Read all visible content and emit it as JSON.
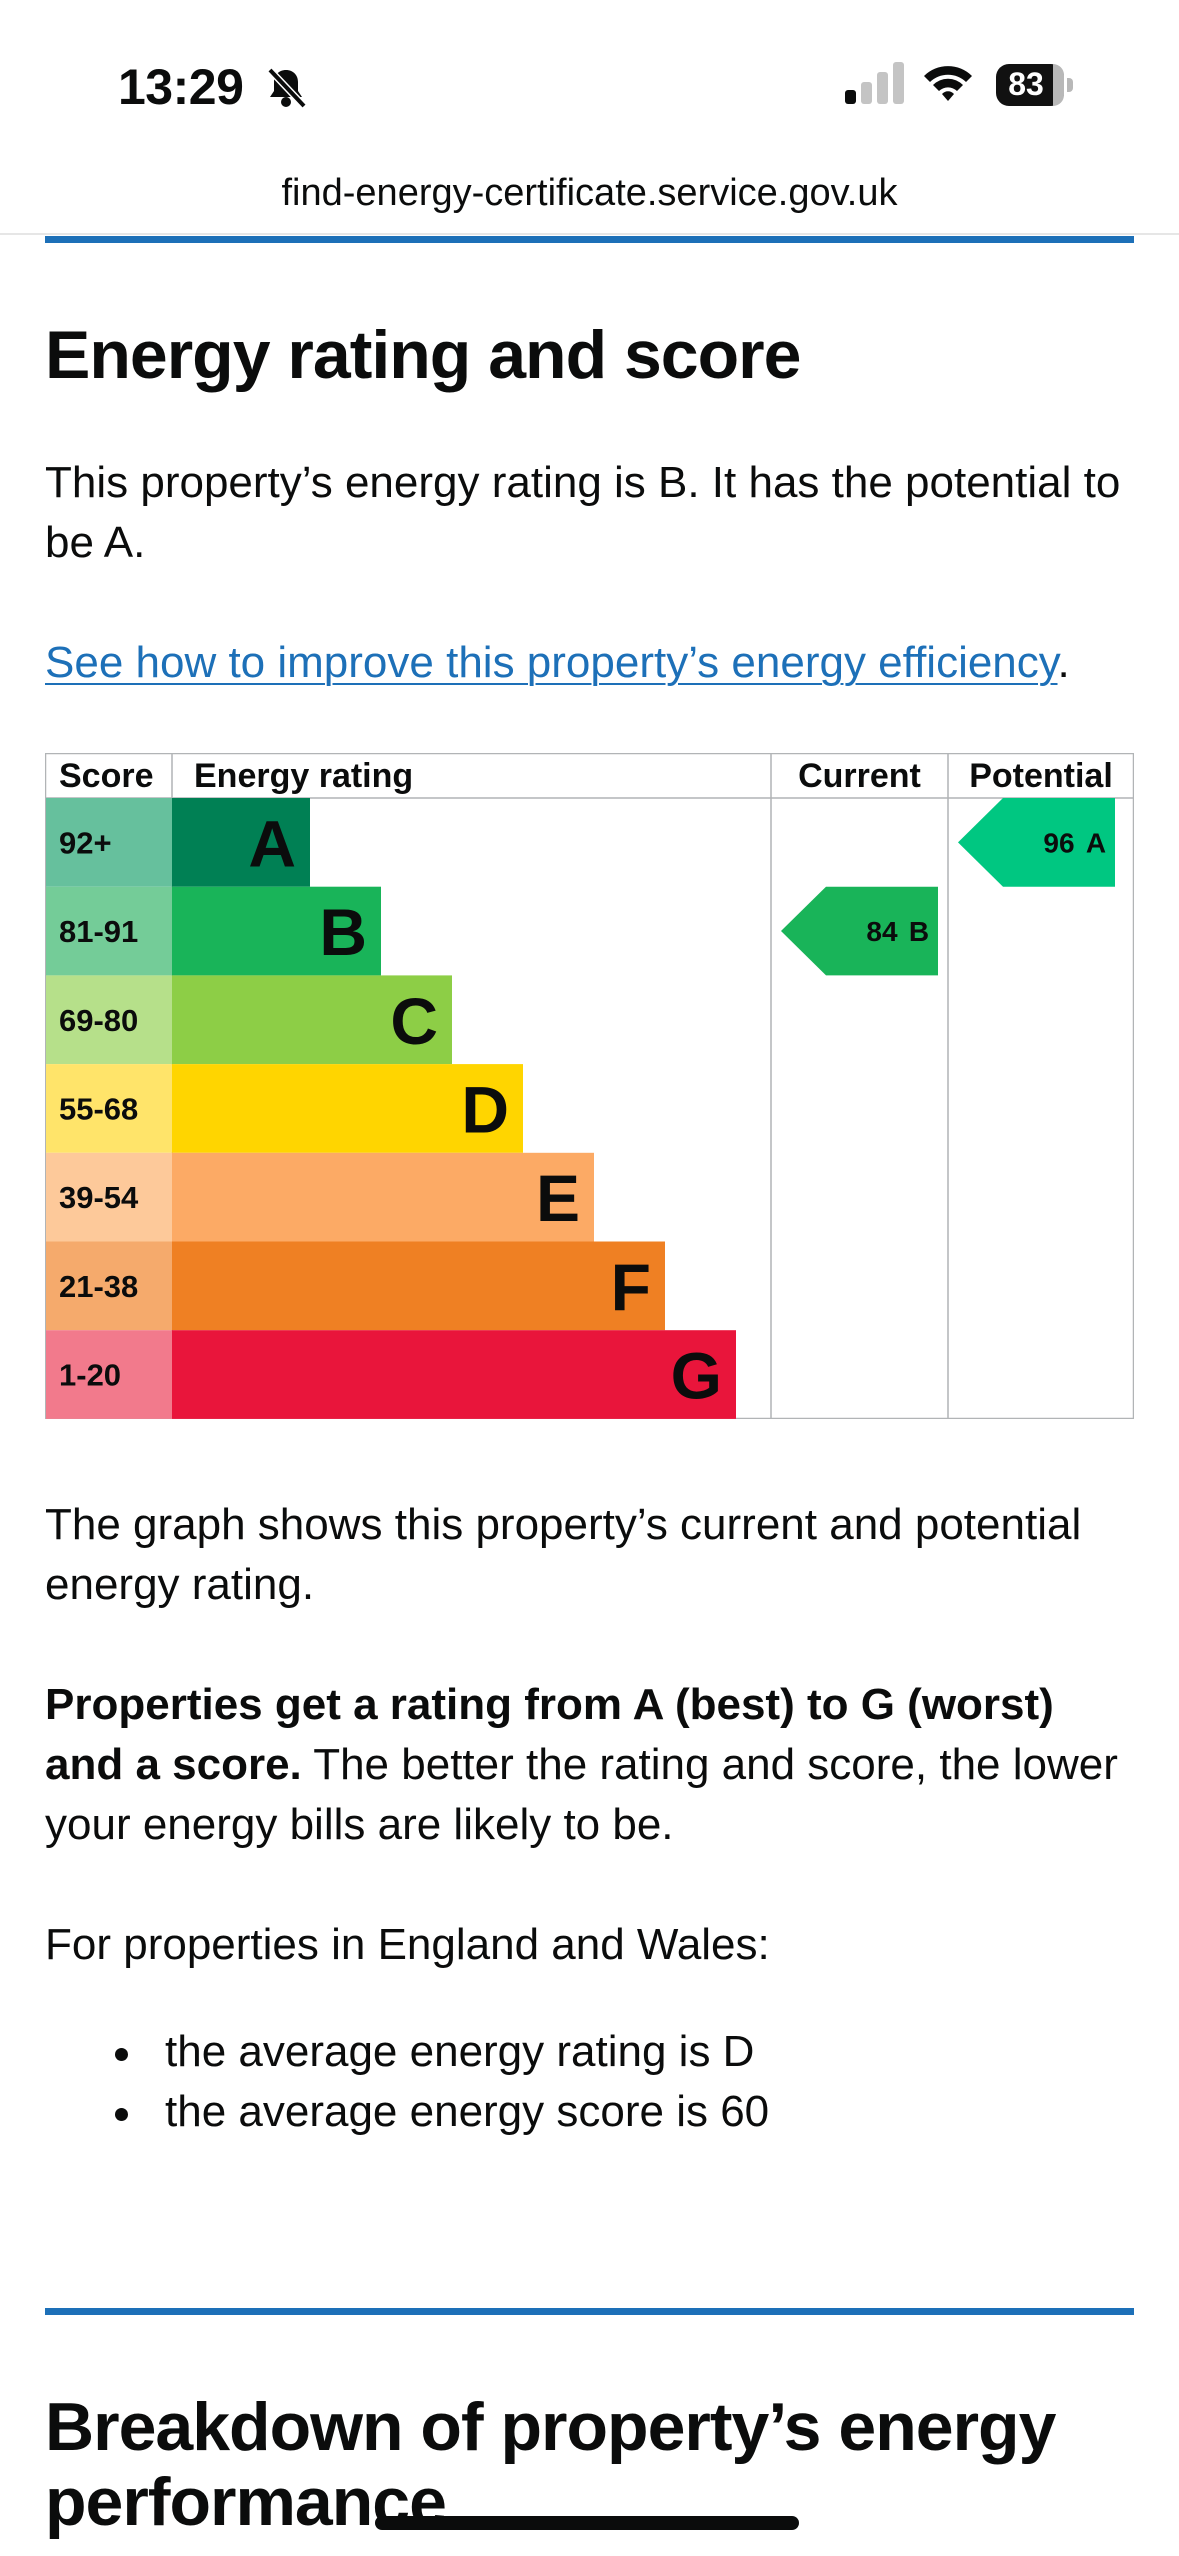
{
  "status_bar": {
    "time": "13:29",
    "battery": "83"
  },
  "browser": {
    "url": "find-energy-certificate.service.gov.uk"
  },
  "section1": {
    "heading": "Energy rating and score",
    "intro": "This property’s energy rating is B. It has the potential to be A.",
    "improve_link": "See how to improve this property’s energy efficiency",
    "improve_link_suffix": "."
  },
  "chart_data": {
    "type": "table",
    "columns": [
      "Score",
      "Energy rating",
      "Current",
      "Potential"
    ],
    "bands": [
      {
        "score": "92+",
        "letter": "A",
        "color": "#008054",
        "score_bg": "#66c09d"
      },
      {
        "score": "81-91",
        "letter": "B",
        "color": "#19b459",
        "score_bg": "#74cc98"
      },
      {
        "score": "69-80",
        "letter": "C",
        "color": "#8dce46",
        "score_bg": "#b6e08a"
      },
      {
        "score": "55-68",
        "letter": "D",
        "color": "#ffd500",
        "score_bg": "#ffe46a"
      },
      {
        "score": "39-54",
        "letter": "E",
        "color": "#fcaa65",
        "score_bg": "#fdc99a"
      },
      {
        "score": "21-38",
        "letter": "F",
        "color": "#ef8023",
        "score_bg": "#f5aa6c"
      },
      {
        "score": "1-20",
        "letter": "G",
        "color": "#e9153b",
        "score_bg": "#f27a8c"
      }
    ],
    "current": {
      "value": 84,
      "letter": "B",
      "color": "#19b459"
    },
    "potential": {
      "value": 96,
      "letter": "A",
      "color": "#00c781"
    }
  },
  "explanation": {
    "graph_text": "The graph shows this property’s current and potential energy rating.",
    "bold_text": "Properties get a rating from A (best) to G (worst) and a score.",
    "rest_text": " The better the rating and score, the lower your energy bills are likely to be.",
    "england_wales": "For properties in England and Wales:",
    "bullets": [
      "the average energy rating is D",
      "the average energy score is 60"
    ]
  },
  "section2": {
    "heading": "Breakdown of property’s energy performance"
  }
}
